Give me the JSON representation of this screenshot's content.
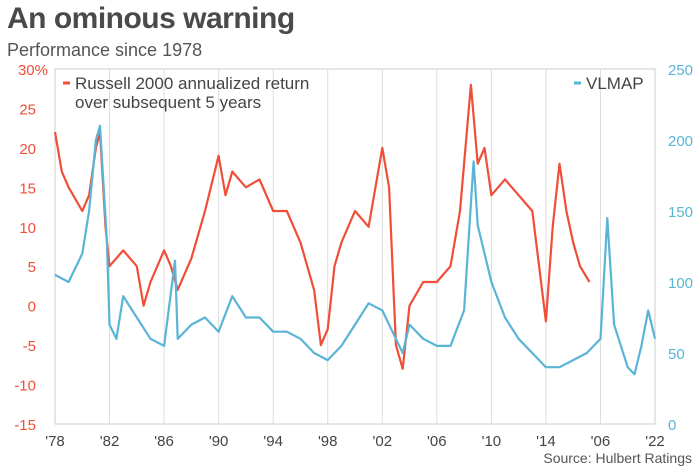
{
  "chart_data": {
    "type": "line",
    "title": "An ominous warning",
    "subtitle": "Performance since 1978",
    "source": "Source: Hulbert Ratings",
    "x_ticks": [
      "'78",
      "'82",
      "'86",
      "'90",
      "'94",
      "'98",
      "'02",
      "'06",
      "'10",
      "'14",
      "'06",
      "'22"
    ],
    "xlim": [
      1978,
      2022
    ],
    "y_left": {
      "ticks": [
        "30%",
        "25",
        "20",
        "15",
        "10",
        "5",
        "0",
        "-5",
        "-10",
        "-15"
      ],
      "range": [
        -15,
        30
      ],
      "color": "#f04e37"
    },
    "y_right": {
      "ticks": [
        "250",
        "200",
        "150",
        "100",
        "50",
        "0"
      ],
      "range": [
        0,
        250
      ],
      "color": "#5ab4d6"
    },
    "grid": "vertical",
    "legend": [
      {
        "line1": "Russell 2000 annualized return",
        "line2": "over subsequent 5 years",
        "color": "#f04e37",
        "placement": "top-left"
      },
      {
        "line1": "VLMAP",
        "color": "#5ab4d6",
        "placement": "top-right"
      }
    ],
    "series": [
      {
        "name": "Russell 2000 annualized return over subsequent 5 years",
        "axis": "left",
        "color": "#f04e37",
        "x": [
          1978,
          1978.5,
          1979,
          1980,
          1980.5,
          1981,
          1981.3,
          1981.7,
          1982,
          1983,
          1984,
          1984.5,
          1985,
          1986,
          1986.5,
          1987,
          1988,
          1989,
          1990,
          1990.5,
          1991,
          1992,
          1993,
          1994,
          1995,
          1996,
          1997,
          1997.5,
          1998,
          1998.5,
          1999,
          2000,
          2001,
          2002,
          2002.5,
          2003,
          2003.5,
          2004,
          2005,
          2006,
          2007,
          2007.7,
          2008.5,
          2009,
          2009.5,
          2010,
          2011,
          2012,
          2013,
          2013.5,
          2014,
          2014.5,
          2015,
          2015.5,
          2016,
          2016.5,
          2017.2
        ],
        "y": [
          22,
          17,
          15,
          12,
          14,
          20,
          22,
          10,
          5,
          7,
          5,
          0,
          3,
          7,
          5,
          2,
          6,
          12,
          19,
          14,
          17,
          15,
          16,
          12,
          12,
          8,
          2,
          -5,
          -3,
          5,
          8,
          12,
          10,
          20,
          15,
          -5,
          -8,
          0,
          3,
          3,
          5,
          12,
          28,
          18,
          20,
          14,
          16,
          14,
          12,
          5,
          -2,
          10,
          18,
          12,
          8,
          5,
          3
        ]
      },
      {
        "name": "VLMAP",
        "axis": "right",
        "color": "#5ab4d6",
        "x": [
          1978,
          1979,
          1980,
          1980.5,
          1981,
          1981.3,
          1981.8,
          1982,
          1982.5,
          1983,
          1984,
          1985,
          1986,
          1986.8,
          1987,
          1988,
          1989,
          1990,
          1991,
          1992,
          1993,
          1994,
          1995,
          1996,
          1997,
          1998,
          1999,
          2000,
          2001,
          2002,
          2003,
          2003.5,
          2004,
          2005,
          2006,
          2007,
          2008,
          2008.7,
          2009,
          2010,
          2011,
          2012,
          2013,
          2014,
          2015,
          2016,
          2017,
          2018,
          2018.5,
          2019,
          2020,
          2020.5,
          2021,
          2021.5,
          2022
        ],
        "y": [
          105,
          100,
          120,
          150,
          200,
          210,
          130,
          70,
          60,
          90,
          75,
          60,
          55,
          115,
          60,
          70,
          75,
          65,
          90,
          75,
          75,
          65,
          65,
          60,
          50,
          45,
          55,
          70,
          85,
          80,
          60,
          50,
          70,
          60,
          55,
          55,
          80,
          185,
          140,
          100,
          75,
          60,
          50,
          40,
          40,
          45,
          50,
          60,
          145,
          70,
          40,
          35,
          55,
          80,
          60
        ]
      }
    ]
  }
}
